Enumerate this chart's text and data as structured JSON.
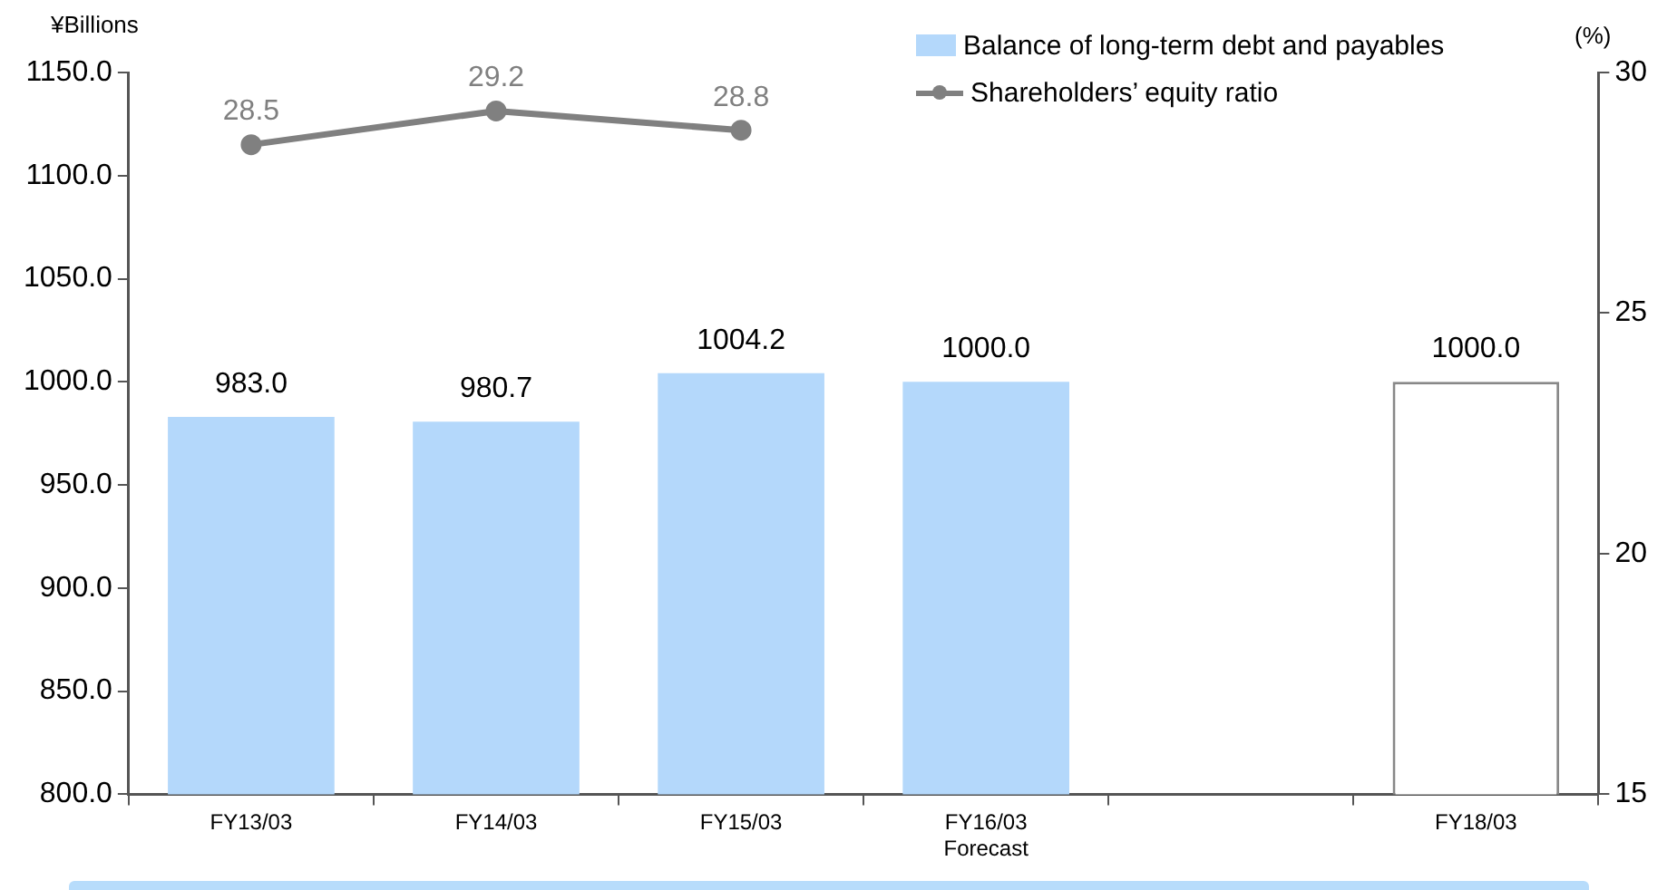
{
  "chart_data": {
    "type": "bar",
    "categories": [
      "FY13/03",
      "FY14/03",
      "FY15/03",
      "FY16/03\nForecast",
      null,
      "FY18/03"
    ],
    "ylabel": "¥Billions",
    "y2label": "(%)",
    "series": [
      {
        "name": "Balance of long-term debt and payables",
        "colors": [
          "#b4d8fb",
          "#b4d8fb",
          "#b4d8fb",
          "#b4d8fb",
          "#ffffff",
          "#ffffff"
        ],
        "color": "#b4d8fb",
        "values": [
          983.0,
          980.7,
          1004.2,
          1000.0,
          null,
          1000.0
        ],
        "value_labels": [
          "983.0",
          "980.7",
          "1004.2",
          "1000.0",
          null,
          "1000.0"
        ]
      },
      {
        "name": "Shareholders’ equity ratio",
        "type": "line",
        "axis": "y2",
        "color": "#808080",
        "values": [
          28.5,
          29.2,
          28.8,
          null,
          null,
          null
        ],
        "value_labels": [
          "28.5",
          "29.2",
          "28.8",
          null,
          null,
          null
        ]
      }
    ],
    "ylim": [
      800,
      1150
    ],
    "yticks": [
      {
        "value": 800,
        "label": "800.0"
      },
      {
        "value": 850,
        "label": "850.0"
      },
      {
        "value": 900,
        "label": "900.0"
      },
      {
        "value": 950,
        "label": "950.0"
      },
      {
        "value": 1000,
        "label": "1000.0"
      },
      {
        "value": 1050,
        "label": "1050.0"
      },
      {
        "value": 1100,
        "label": "1100.0"
      },
      {
        "value": 1150,
        "label": "1150.0"
      }
    ],
    "y2lim": [
      15,
      30
    ],
    "y2ticks": [
      15,
      20,
      25,
      30
    ],
    "grid": false,
    "legend": "top right",
    "marker": "circle",
    "line_style": "solid"
  }
}
